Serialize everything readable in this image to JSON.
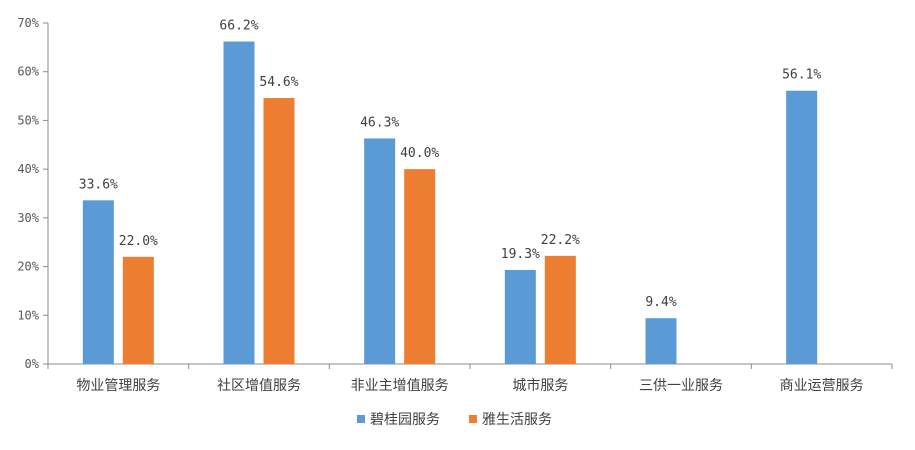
{
  "chart_data": {
    "type": "bar",
    "categories": [
      "物业管理服务",
      "社区增值服务",
      "非业主增值服务",
      "城市服务",
      "三供一业服务",
      "商业运营服务"
    ],
    "series": [
      {
        "name": "碧桂园服务",
        "color": "#5B9BD5",
        "values": [
          33.6,
          66.2,
          46.3,
          19.3,
          9.4,
          56.1
        ],
        "labels": [
          "33.6%",
          "66.2%",
          "46.3%",
          "19.3%",
          "9.4%",
          "56.1%"
        ]
      },
      {
        "name": "雅生活服务",
        "color": "#ED7D31",
        "values": [
          22.0,
          54.6,
          40.0,
          22.2,
          null,
          null
        ],
        "labels": [
          "22.0%",
          "54.6%",
          "40.0%",
          "22.2%",
          null,
          null
        ]
      }
    ],
    "ylim": [
      0,
      70
    ],
    "yticks": [
      "0%",
      "10%",
      "20%",
      "30%",
      "40%",
      "50%",
      "60%",
      "70%"
    ],
    "grid": false,
    "legend_position": "bottom"
  }
}
